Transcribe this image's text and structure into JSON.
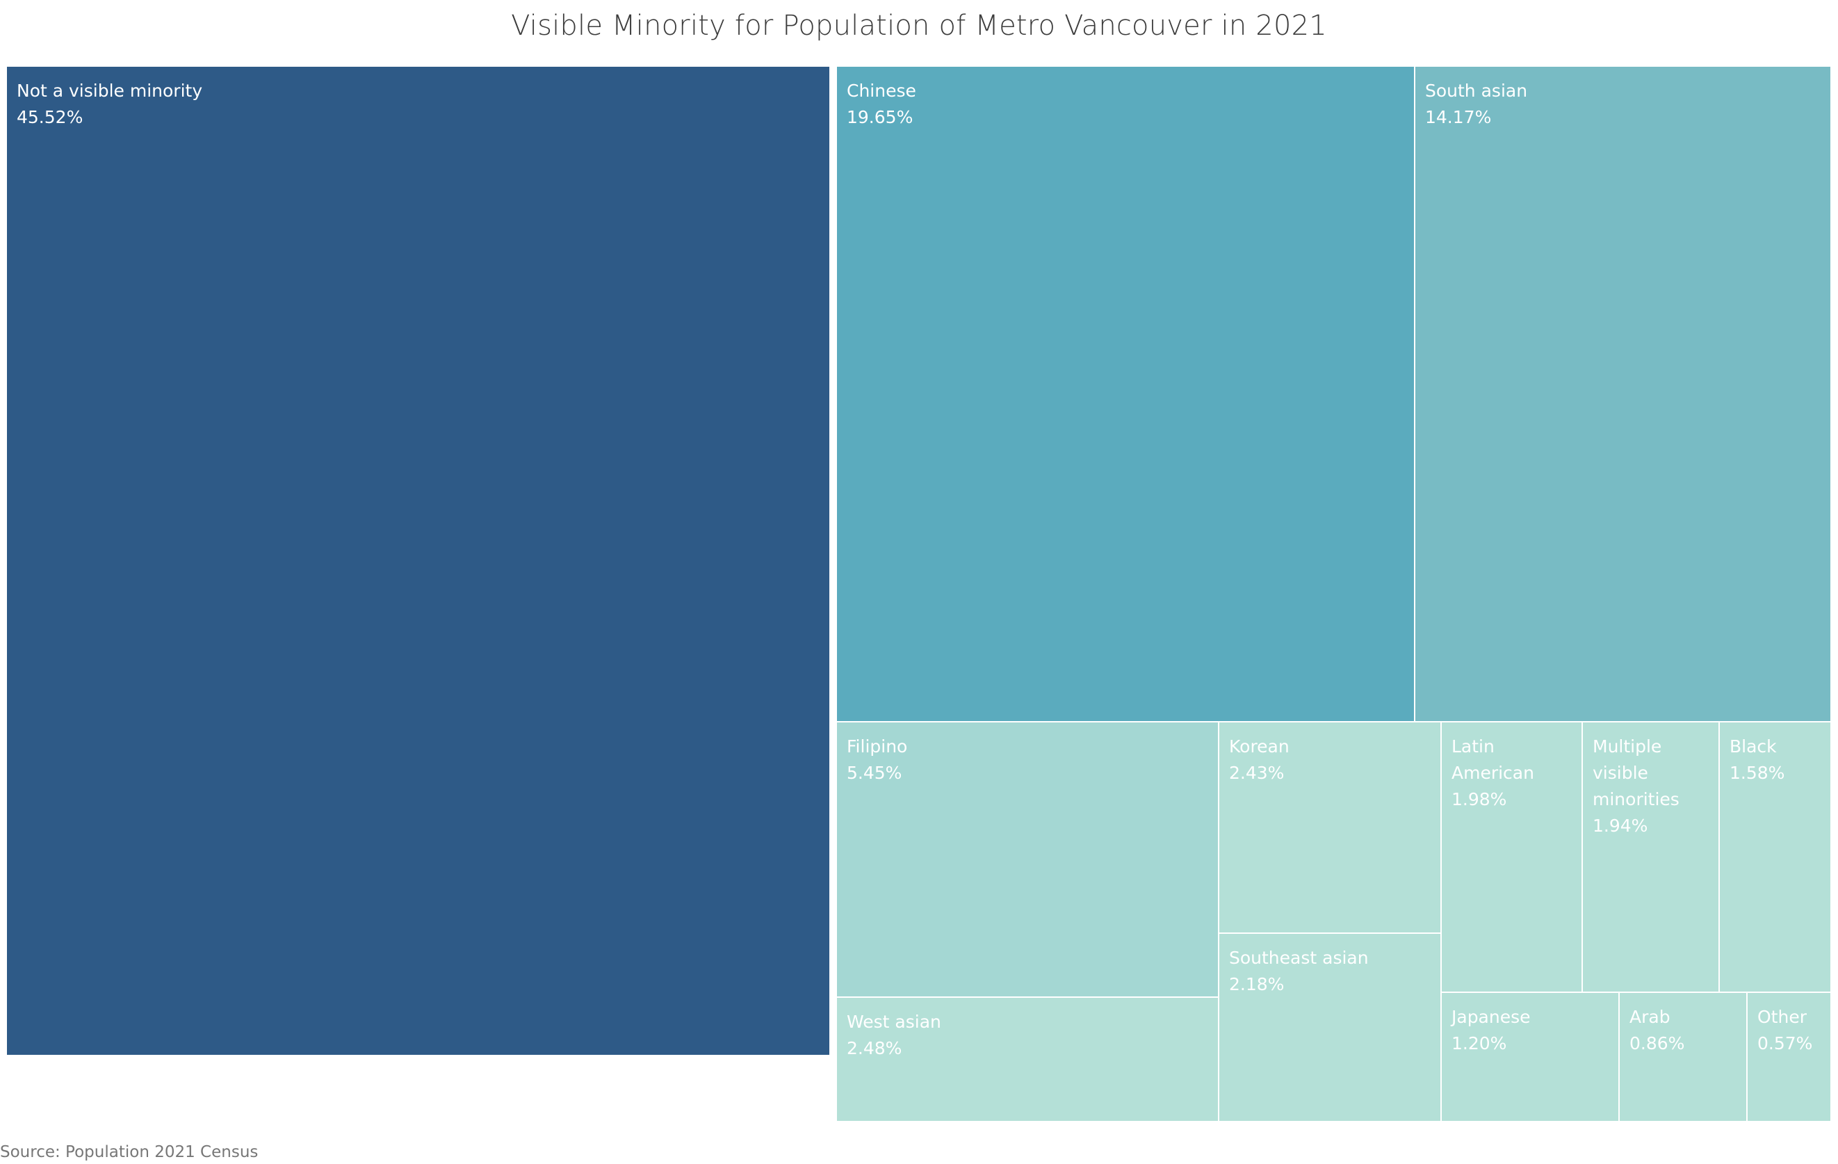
{
  "chart_data": {
    "type": "treemap",
    "title": "Visible Minority for Population of Metro Vancouver in 2021",
    "source": "Source: Population 2021 Census",
    "unit": "%",
    "items": [
      {
        "name": "Not a visible minority",
        "value": 45.52,
        "label": [
          "Not a visible minority",
          "45.52%"
        ],
        "color": "#2e5a87"
      },
      {
        "name": "Chinese",
        "value": 19.65,
        "label": [
          "Chinese",
          "19.65%"
        ],
        "color": "#5babbe"
      },
      {
        "name": "South asian",
        "value": 14.17,
        "label": [
          "South asian",
          "14.17%"
        ],
        "color": "#78bbc4"
      },
      {
        "name": "Filipino",
        "value": 5.45,
        "label": [
          "Filipino",
          "5.45%"
        ],
        "color": "#a4d7d3"
      },
      {
        "name": "West asian",
        "value": 2.48,
        "label": [
          "West asian",
          "2.48%"
        ],
        "color": "#b4e0d7"
      },
      {
        "name": "Korean",
        "value": 2.43,
        "label": [
          "Korean",
          "2.43%"
        ],
        "color": "#b4e0d7"
      },
      {
        "name": "Southeast asian",
        "value": 2.18,
        "label": [
          "Southeast asian",
          "2.18%"
        ],
        "color": "#b4e0d7"
      },
      {
        "name": "Latin American",
        "value": 1.98,
        "label": [
          "Latin",
          "American",
          "1.98%"
        ],
        "color": "#b4e0d7"
      },
      {
        "name": "Multiple visible minorities",
        "value": 1.94,
        "label": [
          "Multiple",
          "visible",
          "minorities",
          "1.94%"
        ],
        "color": "#b4e0d7"
      },
      {
        "name": "Black",
        "value": 1.58,
        "label": [
          "Black",
          "1.58%"
        ],
        "color": "#b4e0d7"
      },
      {
        "name": "Japanese",
        "value": 1.2,
        "label": [
          "Japanese",
          "1.20%"
        ],
        "color": "#b4e0d7"
      },
      {
        "name": "Arab",
        "value": 0.86,
        "label": [
          "Arab",
          "0.86%"
        ],
        "color": "#b4e0d7"
      },
      {
        "name": "Other",
        "value": 0.57,
        "label": [
          "Other",
          "0.57%"
        ],
        "color": "#b4e0d7"
      }
    ]
  }
}
